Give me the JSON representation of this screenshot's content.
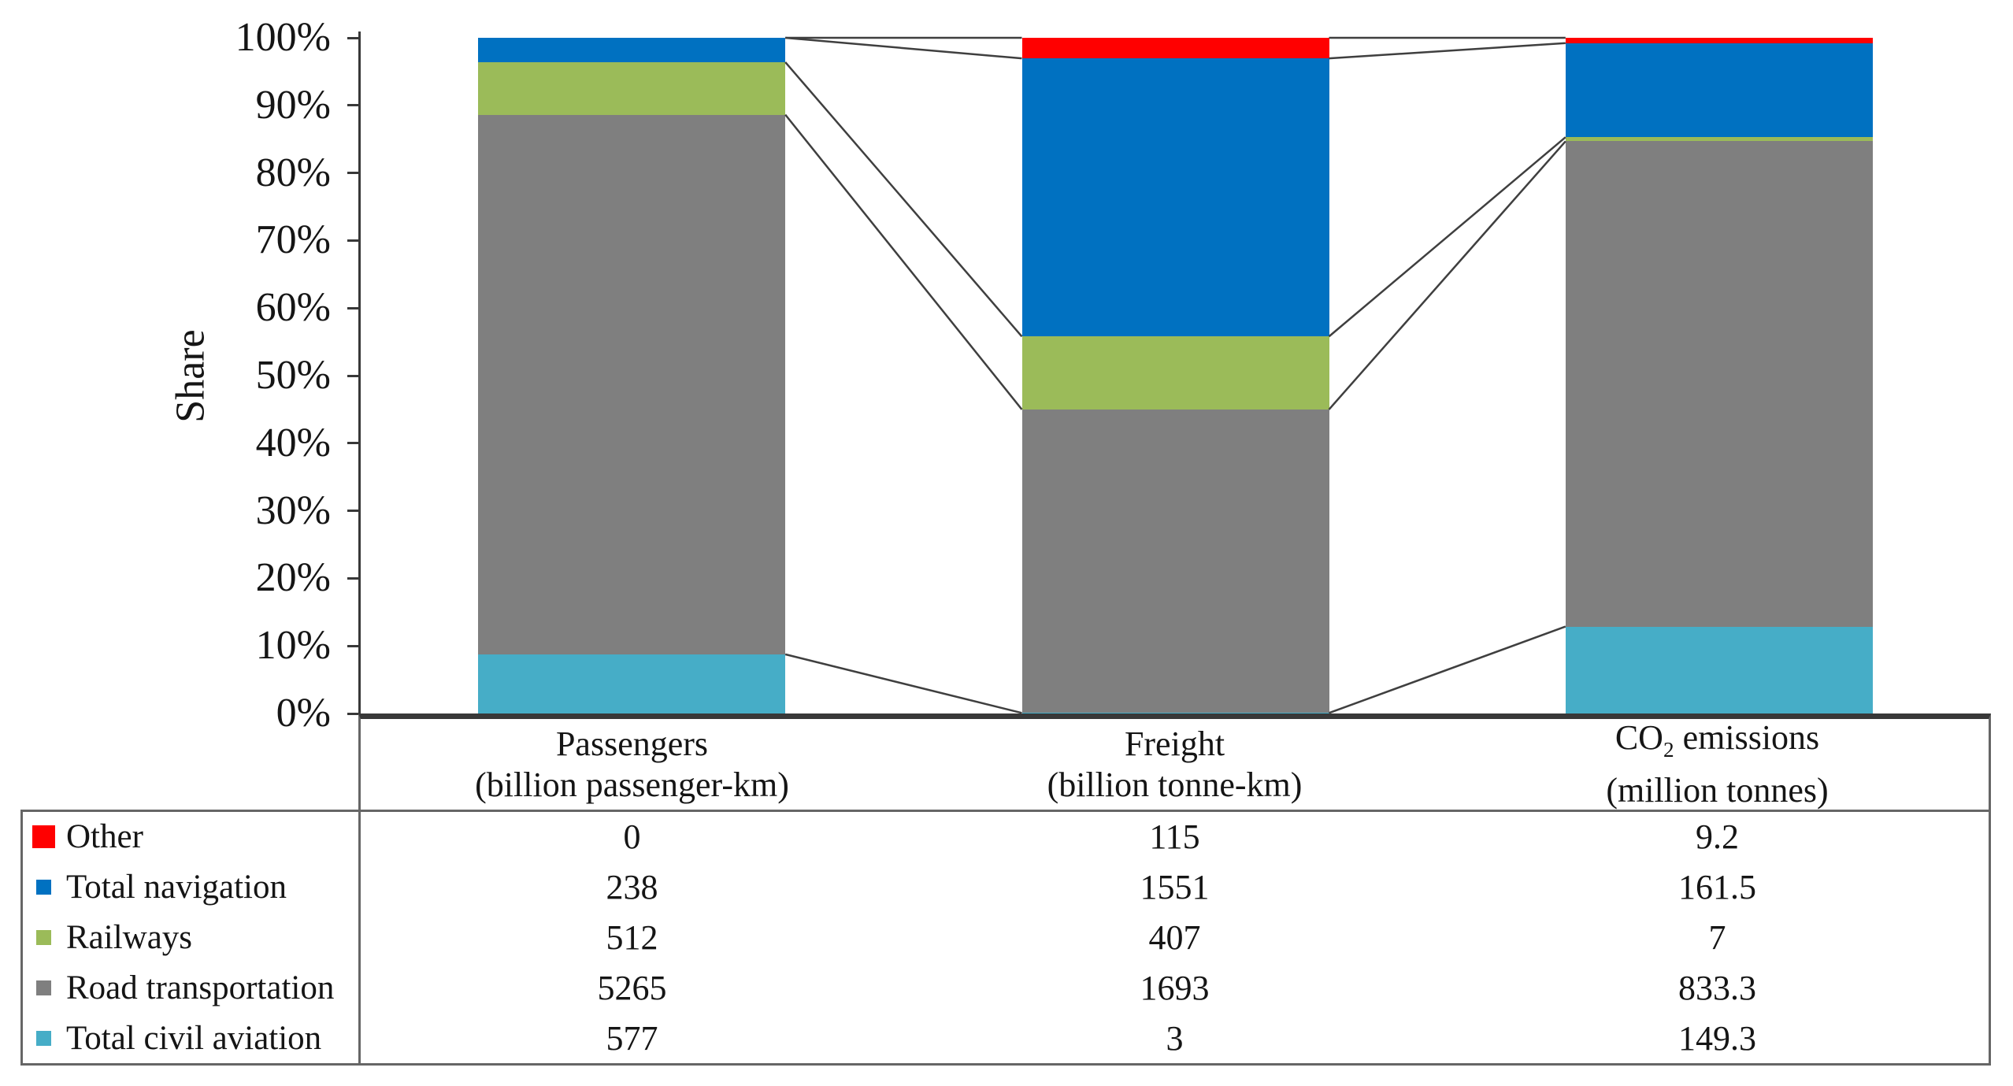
{
  "chart_data": {
    "type": "bar",
    "stacked": true,
    "normalized": "percent",
    "ylabel": "Share",
    "ylim": [
      0,
      100
    ],
    "grid": false,
    "legend_position": "table-left-column",
    "y_ticks": [
      "100%",
      "90%",
      "80%",
      "70%",
      "60%",
      "50%",
      "40%",
      "30%",
      "20%",
      "10%",
      "0%"
    ],
    "categories": [
      {
        "title": "Passengers",
        "title_tokens": [
          {
            "t": "Passengers"
          }
        ],
        "subtitle": "(billion passenger-km)"
      },
      {
        "title": "Freight",
        "title_tokens": [
          {
            "t": "Freight"
          }
        ],
        "subtitle": "(billion tonne-km)"
      },
      {
        "title": "CO2 emissions",
        "title_tokens": [
          {
            "t": "CO"
          },
          {
            "t": "2",
            "sub": true
          },
          {
            "t": " emissions"
          }
        ],
        "subtitle": "(million tonnes)"
      }
    ],
    "series": [
      {
        "name": "Other",
        "color": "#FF0000",
        "values": [
          0,
          115,
          9.2
        ]
      },
      {
        "name": "Total navigation",
        "color": "#0071C1",
        "values": [
          238,
          1551,
          161.5
        ]
      },
      {
        "name": "Railways",
        "color": "#9BBB59",
        "values": [
          512,
          407,
          7
        ]
      },
      {
        "name": "Road transportation",
        "color": "#7F7F7F",
        "values": [
          5265,
          1693,
          833.3
        ]
      },
      {
        "name": "Total civil aviation",
        "color": "#46ADC7",
        "values": [
          577,
          3,
          149.3
        ]
      }
    ],
    "connector_lines": true
  },
  "style": {
    "axis_color": "#383838",
    "table_border_color": "#666666",
    "connector_color": "#3f3f3f",
    "text_color": "#151515",
    "background": "#ffffff"
  }
}
